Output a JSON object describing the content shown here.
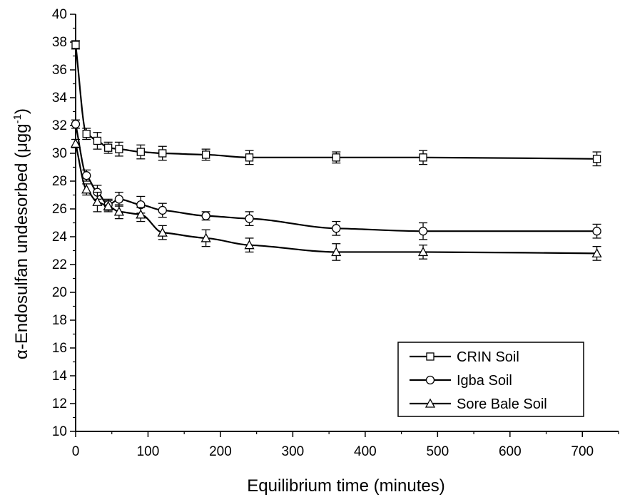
{
  "chart_data": {
    "type": "line",
    "xlabel": "Equilibrium time (minutes)",
    "ylabel_main": "α-Endosulfan undesorbed (μgg",
    "ylabel_sup": "-1",
    "ylabel_close": ")",
    "xlim": [
      0,
      750
    ],
    "ylim": [
      10,
      40
    ],
    "xticks": [
      0,
      100,
      200,
      300,
      400,
      500,
      600,
      700
    ],
    "yticks": [
      10,
      12,
      14,
      16,
      18,
      20,
      22,
      24,
      26,
      28,
      30,
      32,
      34,
      36,
      38,
      40
    ],
    "x": [
      0,
      15,
      30,
      45,
      60,
      90,
      120,
      180,
      240,
      360,
      480,
      720
    ],
    "series": [
      {
        "name": "CRIN Soil",
        "marker": "square",
        "values": [
          37.8,
          31.4,
          30.9,
          30.4,
          30.3,
          30.1,
          30.0,
          29.9,
          29.7,
          29.7,
          29.7,
          29.6
        ],
        "errors": [
          0.3,
          0.4,
          0.6,
          0.4,
          0.5,
          0.5,
          0.5,
          0.4,
          0.5,
          0.4,
          0.5,
          0.5
        ]
      },
      {
        "name": "Igba Soil",
        "marker": "circle",
        "values": [
          32.1,
          28.4,
          27.2,
          26.3,
          26.7,
          26.3,
          25.9,
          25.5,
          25.3,
          24.6,
          24.4,
          24.4
        ],
        "errors": [
          0.3,
          0.4,
          0.5,
          0.4,
          0.5,
          0.6,
          0.5,
          0.3,
          0.5,
          0.5,
          0.6,
          0.5
        ]
      },
      {
        "name": "Sore Bale Soil",
        "marker": "triangle",
        "values": [
          30.7,
          27.4,
          26.5,
          26.2,
          25.8,
          25.6,
          24.3,
          23.9,
          23.4,
          22.9,
          22.9,
          22.8
        ],
        "errors": [
          0.3,
          0.4,
          0.7,
          0.4,
          0.5,
          0.5,
          0.5,
          0.6,
          0.5,
          0.6,
          0.5,
          0.5
        ]
      }
    ],
    "legend_position": "bottom-right",
    "grid": false
  }
}
